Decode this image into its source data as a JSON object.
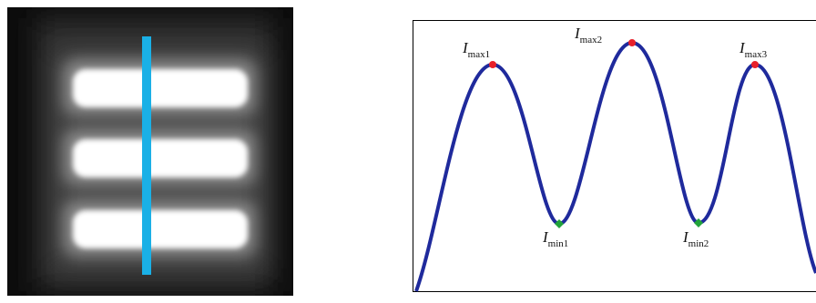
{
  "figure": {
    "labels": [
      {
        "symbol": "I",
        "subscript": "max1"
      },
      {
        "symbol": "I",
        "subscript": "max2"
      },
      {
        "symbol": "I",
        "subscript": "max3"
      },
      {
        "symbol": "I",
        "subscript": "min1"
      },
      {
        "symbol": "I",
        "subscript": "min2"
      }
    ]
  }
}
